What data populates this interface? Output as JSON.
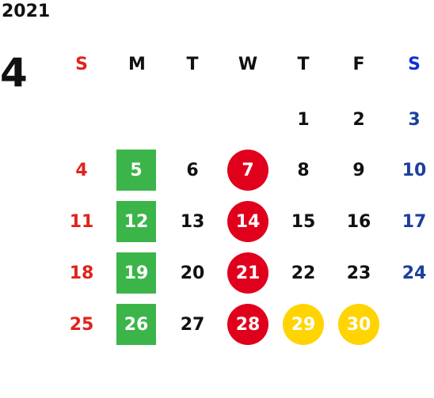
{
  "calendar": {
    "year": "2021",
    "month": "4",
    "weekday_headers": [
      "S",
      "M",
      "T",
      "W",
      "T",
      "F",
      "S"
    ],
    "weeks": [
      [
        "",
        "",
        "",
        "",
        "1",
        "2",
        "3"
      ],
      [
        "4",
        "5",
        "6",
        "7",
        "8",
        "9",
        "10"
      ],
      [
        "11",
        "12",
        "13",
        "14",
        "15",
        "16",
        "17"
      ],
      [
        "18",
        "19",
        "20",
        "21",
        "22",
        "23",
        "24"
      ],
      [
        "25",
        "26",
        "27",
        "28",
        "29",
        "30",
        ""
      ]
    ],
    "highlights": {
      "green_square": [
        "5",
        "12",
        "19",
        "26"
      ],
      "red_circle": [
        "7",
        "14",
        "21",
        "28"
      ],
      "yellow_circle": [
        "29",
        "30"
      ]
    },
    "colors": {
      "sunday": "#e0231b",
      "saturday": "#1c3f9c",
      "saturday_header": "#1230d8",
      "green": "#3bb54a",
      "red": "#e1001c",
      "yellow": "#ffd400"
    }
  }
}
